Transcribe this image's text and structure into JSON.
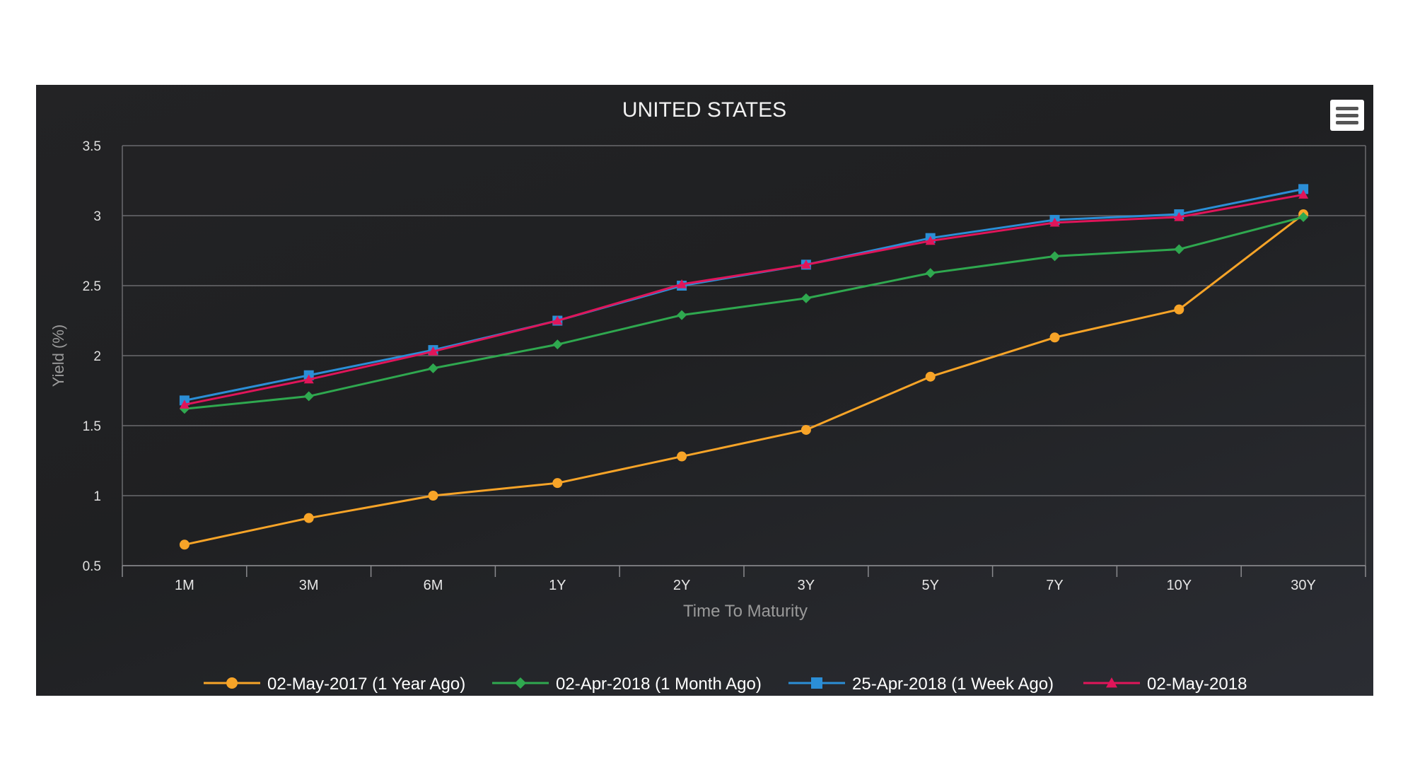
{
  "chart_data": {
    "type": "line",
    "title": "UNITED STATES",
    "xlabel": "Time To Maturity",
    "ylabel": "Yield (%)",
    "categories": [
      "1M",
      "3M",
      "6M",
      "1Y",
      "2Y",
      "3Y",
      "5Y",
      "7Y",
      "10Y",
      "30Y"
    ],
    "ylim": [
      0.5,
      3.5
    ],
    "yticks": [
      "0.5",
      "1",
      "1.5",
      "2",
      "2.5",
      "3",
      "3.5"
    ],
    "grid": true,
    "legend_position": "bottom",
    "series": [
      {
        "name": "02-May-2017 (1 Year Ago)",
        "color": "#f7a428",
        "marker": "circle",
        "values": [
          0.65,
          0.84,
          1.0,
          1.09,
          1.28,
          1.47,
          1.85,
          2.13,
          2.33,
          3.01
        ]
      },
      {
        "name": "02-Apr-2018 (1 Month Ago)",
        "color": "#2fa84f",
        "marker": "diamond",
        "values": [
          1.62,
          1.71,
          1.91,
          2.08,
          2.29,
          2.41,
          2.59,
          2.71,
          2.76,
          2.99
        ]
      },
      {
        "name": "25-Apr-2018 (1 Week Ago)",
        "color": "#2b8ed6",
        "marker": "square",
        "values": [
          1.68,
          1.86,
          2.04,
          2.25,
          2.5,
          2.65,
          2.84,
          2.97,
          3.01,
          3.19
        ]
      },
      {
        "name": "02-May-2018",
        "color": "#e0155a",
        "marker": "triangle",
        "values": [
          1.65,
          1.83,
          2.03,
          2.25,
          2.51,
          2.65,
          2.82,
          2.95,
          2.99,
          3.15
        ]
      }
    ]
  }
}
